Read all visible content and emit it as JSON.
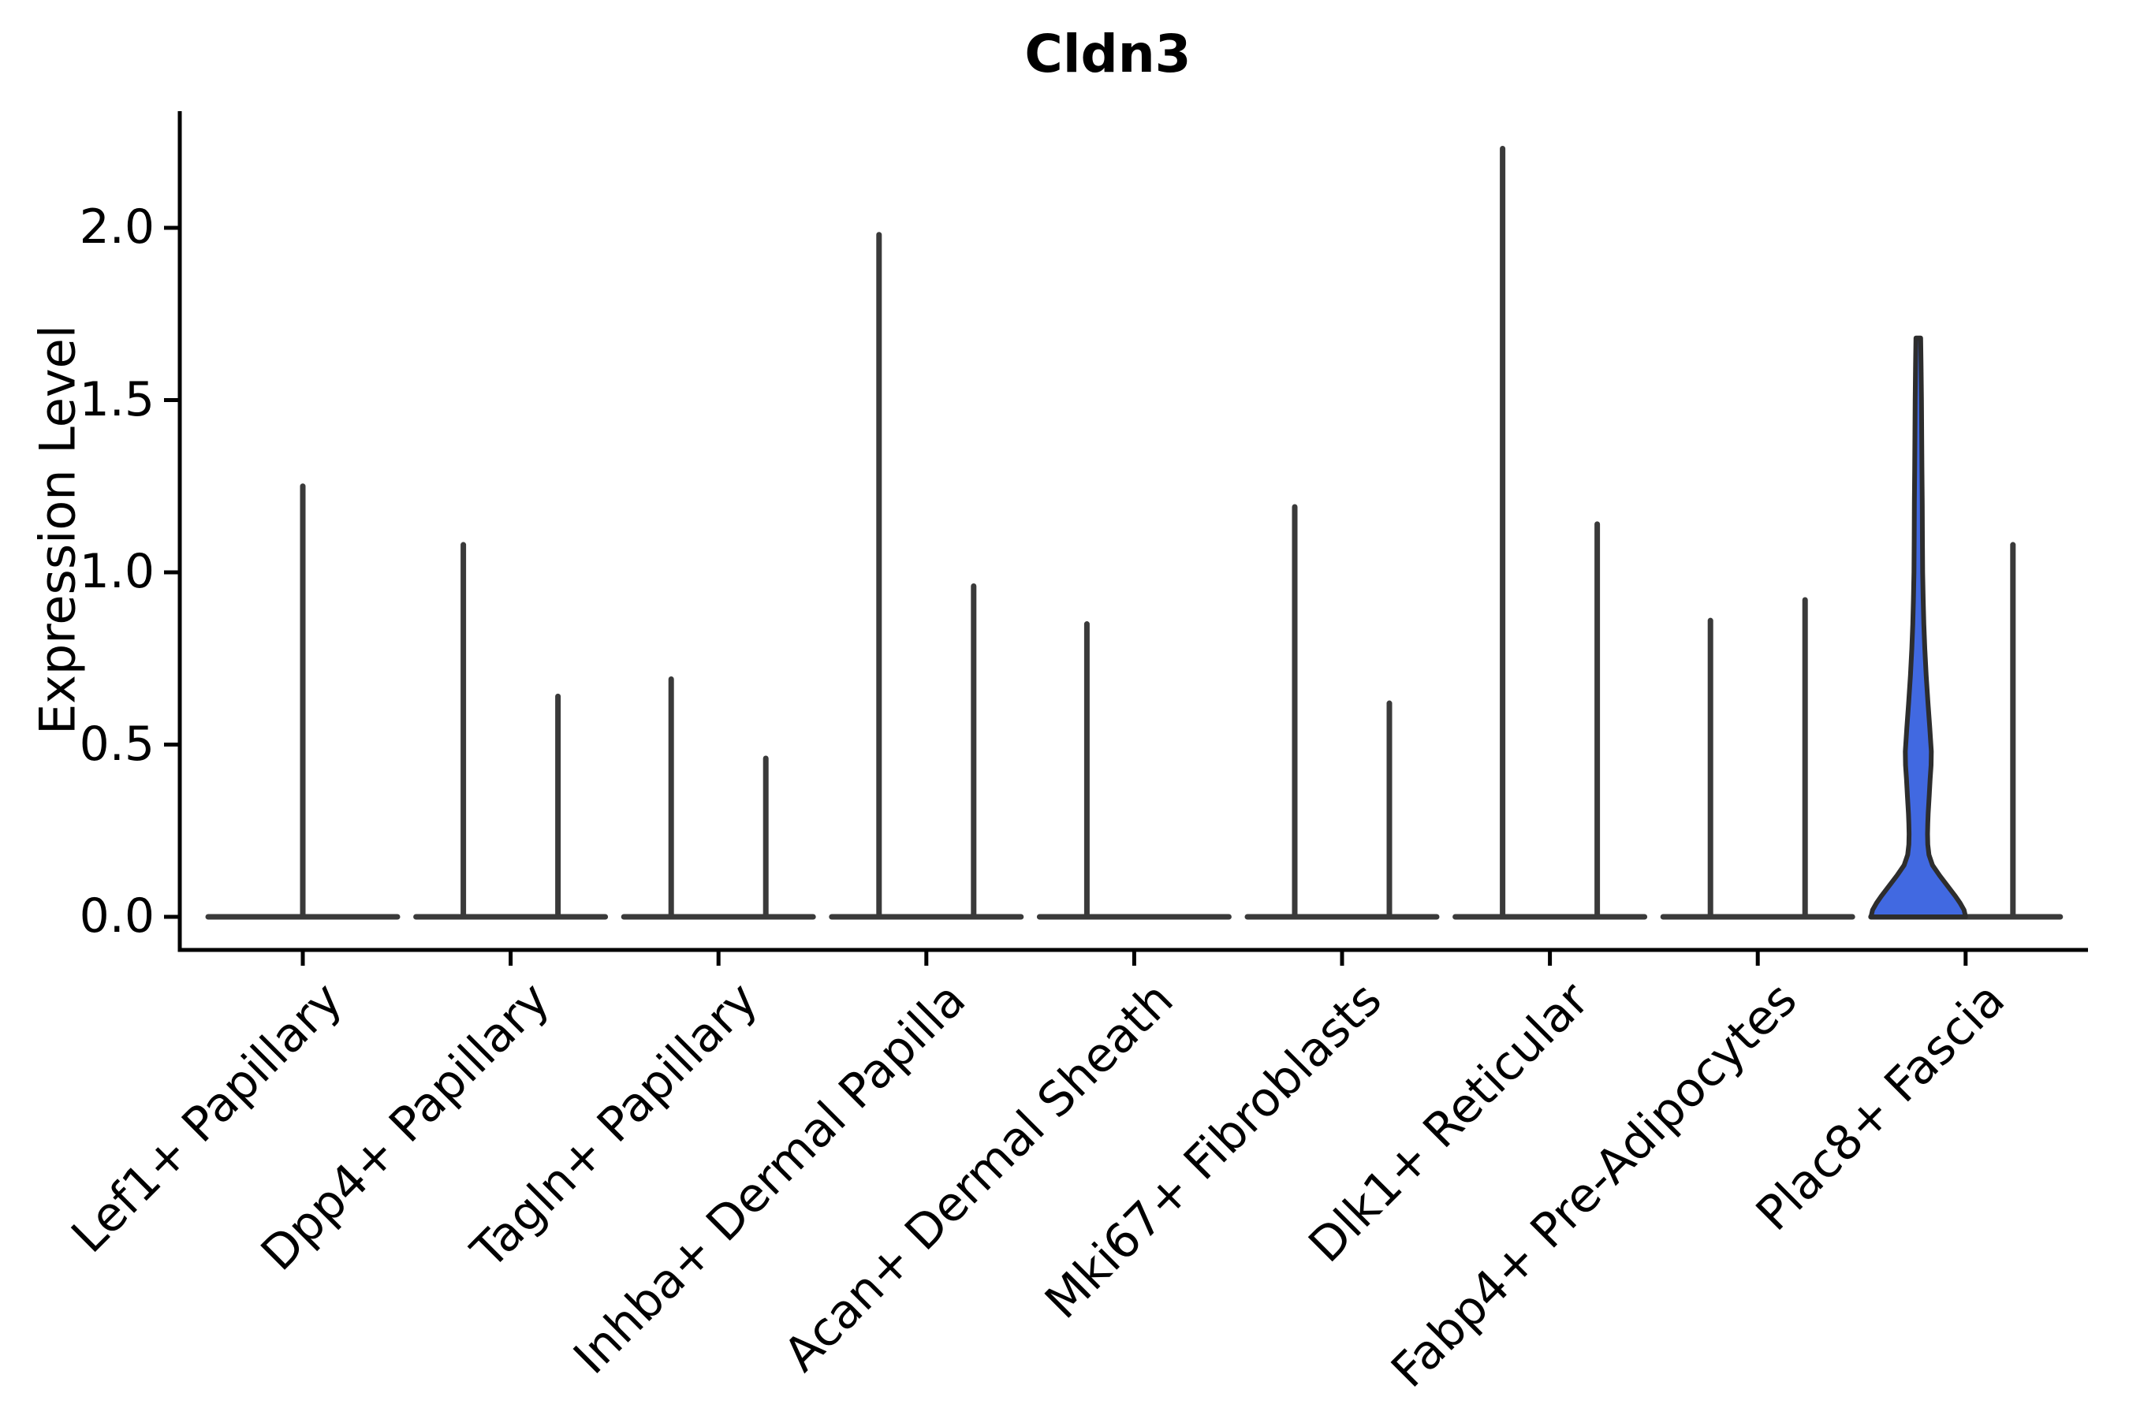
{
  "title": "Cldn3",
  "y_axis": {
    "label": "Expression Level",
    "ticks": [
      {
        "value": 2.0,
        "label": "2.0"
      },
      {
        "value": 1.5,
        "label": "1.5"
      },
      {
        "value": 1.0,
        "label": "1.0"
      },
      {
        "value": 0.5,
        "label": "0.5"
      },
      {
        "value": 0.0,
        "label": "0.0"
      }
    ]
  },
  "x_axis": {
    "categories": [
      "Lef1+ Papillary",
      "Dpp4+ Papillary",
      "Tagln+ Papillary",
      "Inhba+ Dermal Papilla",
      "Acan+ Dermal Sheath",
      "Mki67+ Fibroblasts",
      "Dlk1+ Reticular",
      "Fabp4+ Pre-Adipocytes",
      "Plac8+ Fascia"
    ]
  },
  "chart_data": {
    "type": "violin",
    "title": "Cldn3",
    "xlabel": "",
    "ylabel": "Expression Level",
    "ylim": [
      -0.1,
      2.34
    ],
    "yticks": [
      0.0,
      0.5,
      1.0,
      1.5,
      2.0
    ],
    "grid": false,
    "legend": null,
    "categories": [
      "Lef1+ Papillary",
      "Dpp4+ Papillary",
      "Tagln+ Papillary",
      "Inhba+ Dermal Papilla",
      "Acan+ Dermal Sheath",
      "Mki67+ Fibroblasts",
      "Dlk1+ Reticular",
      "Fabp4+ Pre-Adipocytes",
      "Plac8+ Fascia"
    ],
    "description": "Split violin plot of Cldn3 expression per fibroblast cell type. Two half-width violins per category (Lef1+ Papillary shows a single centered violin; the right Acan+ violin is flat at 0). Expression is almost entirely 0, so violins render as flat baselines with thin spikes up to the maximum expressed value; only the left Plac8+ Fascia violin is wide enough to show a blue filled density shape.",
    "series": [
      {
        "category": "Lef1+ Papillary",
        "violins": [
          {
            "slot": "center",
            "max": 1.25,
            "style": "spike"
          }
        ]
      },
      {
        "category": "Dpp4+ Papillary",
        "violins": [
          {
            "slot": "left",
            "max": 1.08,
            "style": "spike"
          },
          {
            "slot": "right",
            "max": 0.64,
            "style": "spike"
          }
        ]
      },
      {
        "category": "Tagln+ Papillary",
        "violins": [
          {
            "slot": "left",
            "max": 0.69,
            "style": "spike"
          },
          {
            "slot": "right",
            "max": 0.46,
            "style": "spike"
          }
        ]
      },
      {
        "category": "Inhba+ Dermal Papilla",
        "violins": [
          {
            "slot": "left",
            "max": 1.98,
            "style": "spike"
          },
          {
            "slot": "right",
            "max": 0.96,
            "style": "spike"
          }
        ]
      },
      {
        "category": "Acan+ Dermal Sheath",
        "violins": [
          {
            "slot": "left",
            "max": 0.85,
            "style": "spike"
          },
          {
            "slot": "right",
            "max": 0.0,
            "style": "flat"
          }
        ]
      },
      {
        "category": "Mki67+ Fibroblasts",
        "violins": [
          {
            "slot": "left",
            "max": 1.19,
            "style": "spike"
          },
          {
            "slot": "right",
            "max": 0.62,
            "style": "spike"
          }
        ]
      },
      {
        "category": "Dlk1+ Reticular",
        "violins": [
          {
            "slot": "left",
            "max": 2.23,
            "style": "spike"
          },
          {
            "slot": "right",
            "max": 1.14,
            "style": "spike"
          }
        ]
      },
      {
        "category": "Fabp4+ Pre-Adipocytes",
        "violins": [
          {
            "slot": "left",
            "max": 0.86,
            "style": "spike"
          },
          {
            "slot": "right",
            "max": 0.92,
            "style": "spike"
          }
        ]
      },
      {
        "category": "Plac8+ Fascia",
        "violins": [
          {
            "slot": "left",
            "max": 1.68,
            "style": "filled",
            "fill": "#4169e1",
            "profile": [
              [
                1.68,
                3
              ],
              [
                1.6,
                3.5
              ],
              [
                1.5,
                4
              ],
              [
                1.4,
                4.3
              ],
              [
                1.3,
                4.6
              ],
              [
                1.2,
                5
              ],
              [
                1.1,
                5.2
              ],
              [
                1.0,
                5.5
              ],
              [
                0.92,
                6.2
              ],
              [
                0.85,
                7
              ],
              [
                0.78,
                8.2
              ],
              [
                0.7,
                10
              ],
              [
                0.62,
                12.3
              ],
              [
                0.55,
                14.5
              ],
              [
                0.48,
                16.5
              ],
              [
                0.44,
                16.2
              ],
              [
                0.4,
                15
              ],
              [
                0.35,
                13.8
              ],
              [
                0.3,
                12.5
              ],
              [
                0.27,
                12
              ],
              [
                0.24,
                11.7
              ],
              [
                0.21,
                12
              ],
              [
                0.18,
                13.5
              ],
              [
                0.15,
                18
              ],
              [
                0.12,
                27
              ],
              [
                0.09,
                37
              ],
              [
                0.06,
                47
              ],
              [
                0.04,
                53
              ],
              [
                0.02,
                58
              ],
              [
                0.0,
                60
              ]
            ]
          },
          {
            "slot": "right",
            "max": 1.08,
            "style": "spike"
          }
        ]
      }
    ],
    "colors": {
      "violin_outline": "#3a3a3a",
      "highlight_fill": "#4169e1",
      "highlight_outline": "#2d2d2d",
      "axis": "#000000",
      "background": "#ffffff"
    }
  }
}
